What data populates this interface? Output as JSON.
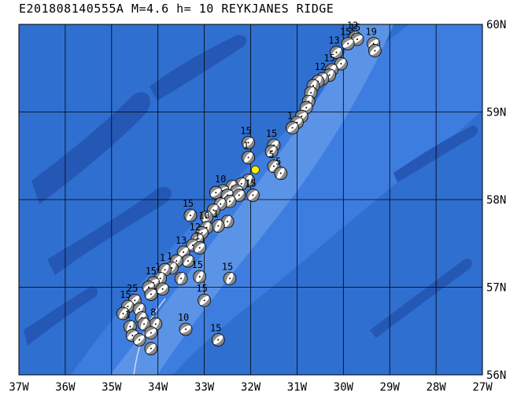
{
  "header": {
    "title": "E201808140555A  M=4.6  h= 10  REYKJANES RIDGE"
  },
  "map": {
    "lon_range": [
      -37,
      -27
    ],
    "lat_range": [
      56,
      60
    ],
    "lon_labels": [
      "37W",
      "36W",
      "35W",
      "34W",
      "33W",
      "32W",
      "31W",
      "30W",
      "29W",
      "28W",
      "27W"
    ],
    "lat_labels": [
      "56N",
      "57N",
      "58N",
      "59N",
      "60N"
    ],
    "colors": {
      "ocean_deep": "#2f6fd0",
      "ocean_mid": "#3d7de0",
      "ridge": "#5b93e6",
      "trench_dark": "#2558b5",
      "grid": "#000000",
      "epicenter": "#ffee00"
    },
    "epicenter": {
      "lon": -31.9,
      "lat": 58.34
    },
    "events": [
      {
        "lon": -29.75,
        "lat": 59.85,
        "depth": "12"
      },
      {
        "lon": -29.7,
        "lat": 59.83,
        "depth": "15"
      },
      {
        "lon": -29.9,
        "lat": 59.78,
        "depth": "15"
      },
      {
        "lon": -29.35,
        "lat": 59.78,
        "depth": "19"
      },
      {
        "lon": -29.32,
        "lat": 59.7,
        "depth": ""
      },
      {
        "lon": -30.15,
        "lat": 59.68,
        "depth": "13"
      },
      {
        "lon": -30.05,
        "lat": 59.55,
        "depth": ""
      },
      {
        "lon": -30.25,
        "lat": 59.48,
        "depth": "15"
      },
      {
        "lon": -30.3,
        "lat": 59.42,
        "depth": ""
      },
      {
        "lon": -30.45,
        "lat": 59.38,
        "depth": "12"
      },
      {
        "lon": -30.55,
        "lat": 59.35,
        "depth": ""
      },
      {
        "lon": -30.65,
        "lat": 59.3,
        "depth": ""
      },
      {
        "lon": -30.7,
        "lat": 59.22,
        "depth": ""
      },
      {
        "lon": -30.75,
        "lat": 59.12,
        "depth": ""
      },
      {
        "lon": -30.8,
        "lat": 59.05,
        "depth": ""
      },
      {
        "lon": -30.9,
        "lat": 58.95,
        "depth": ""
      },
      {
        "lon": -31.0,
        "lat": 58.88,
        "depth": ""
      },
      {
        "lon": -31.1,
        "lat": 58.82,
        "depth": "1"
      },
      {
        "lon": -32.05,
        "lat": 58.65,
        "depth": "15"
      },
      {
        "lon": -31.5,
        "lat": 58.62,
        "depth": "15"
      },
      {
        "lon": -31.55,
        "lat": 58.55,
        "depth": ""
      },
      {
        "lon": -32.05,
        "lat": 58.48,
        "depth": "1"
      },
      {
        "lon": -31.5,
        "lat": 58.38,
        "depth": "5"
      },
      {
        "lon": -31.35,
        "lat": 58.3,
        "depth": "5"
      },
      {
        "lon": -32.05,
        "lat": 58.22,
        "depth": ""
      },
      {
        "lon": -32.2,
        "lat": 58.18,
        "depth": ""
      },
      {
        "lon": -32.4,
        "lat": 58.15,
        "depth": ""
      },
      {
        "lon": -32.3,
        "lat": 58.1,
        "depth": ""
      },
      {
        "lon": -32.6,
        "lat": 58.1,
        "depth": "10"
      },
      {
        "lon": -32.75,
        "lat": 58.08,
        "depth": ""
      },
      {
        "lon": -32.5,
        "lat": 58.05,
        "depth": ""
      },
      {
        "lon": -32.25,
        "lat": 58.05,
        "depth": ""
      },
      {
        "lon": -31.95,
        "lat": 58.05,
        "depth": "15"
      },
      {
        "lon": -32.45,
        "lat": 57.98,
        "depth": ""
      },
      {
        "lon": -32.65,
        "lat": 57.95,
        "depth": ""
      },
      {
        "lon": -32.8,
        "lat": 57.88,
        "depth": ""
      },
      {
        "lon": -33.3,
        "lat": 57.82,
        "depth": "15"
      },
      {
        "lon": -32.95,
        "lat": 57.8,
        "depth": ""
      },
      {
        "lon": -32.5,
        "lat": 57.75,
        "depth": ""
      },
      {
        "lon": -32.7,
        "lat": 57.7,
        "depth": "1"
      },
      {
        "lon": -32.95,
        "lat": 57.68,
        "depth": "10"
      },
      {
        "lon": -33.05,
        "lat": 57.62,
        "depth": ""
      },
      {
        "lon": -33.15,
        "lat": 57.55,
        "depth": "12"
      },
      {
        "lon": -33.25,
        "lat": 57.48,
        "depth": ""
      },
      {
        "lon": -33.1,
        "lat": 57.45,
        "depth": "1"
      },
      {
        "lon": -33.45,
        "lat": 57.4,
        "depth": "13"
      },
      {
        "lon": -33.35,
        "lat": 57.3,
        "depth": ""
      },
      {
        "lon": -33.6,
        "lat": 57.3,
        "depth": ""
      },
      {
        "lon": -33.7,
        "lat": 57.22,
        "depth": "1"
      },
      {
        "lon": -33.85,
        "lat": 57.2,
        "depth": "1"
      },
      {
        "lon": -33.1,
        "lat": 57.12,
        "depth": "15"
      },
      {
        "lon": -32.45,
        "lat": 57.1,
        "depth": "15"
      },
      {
        "lon": -33.5,
        "lat": 57.1,
        "depth": ""
      },
      {
        "lon": -33.95,
        "lat": 57.1,
        "depth": "1"
      },
      {
        "lon": -34.1,
        "lat": 57.05,
        "depth": "15"
      },
      {
        "lon": -34.2,
        "lat": 57.0,
        "depth": ""
      },
      {
        "lon": -33.9,
        "lat": 56.98,
        "depth": ""
      },
      {
        "lon": -34.15,
        "lat": 56.92,
        "depth": ""
      },
      {
        "lon": -33.0,
        "lat": 56.85,
        "depth": "15"
      },
      {
        "lon": -34.5,
        "lat": 56.85,
        "depth": "25"
      },
      {
        "lon": -34.65,
        "lat": 56.78,
        "depth": "15"
      },
      {
        "lon": -34.4,
        "lat": 56.75,
        "depth": ""
      },
      {
        "lon": -34.75,
        "lat": 56.7,
        "depth": ""
      },
      {
        "lon": -34.35,
        "lat": 56.65,
        "depth": ""
      },
      {
        "lon": -34.05,
        "lat": 56.58,
        "depth": "8"
      },
      {
        "lon": -34.3,
        "lat": 56.58,
        "depth": ""
      },
      {
        "lon": -34.6,
        "lat": 56.55,
        "depth": "1"
      },
      {
        "lon": -33.4,
        "lat": 56.52,
        "depth": "10"
      },
      {
        "lon": -34.15,
        "lat": 56.48,
        "depth": ""
      },
      {
        "lon": -34.55,
        "lat": 56.45,
        "depth": ""
      },
      {
        "lon": -34.4,
        "lat": 56.4,
        "depth": ""
      },
      {
        "lon": -32.7,
        "lat": 56.4,
        "depth": "15"
      },
      {
        "lon": -34.15,
        "lat": 56.3,
        "depth": ""
      }
    ]
  }
}
